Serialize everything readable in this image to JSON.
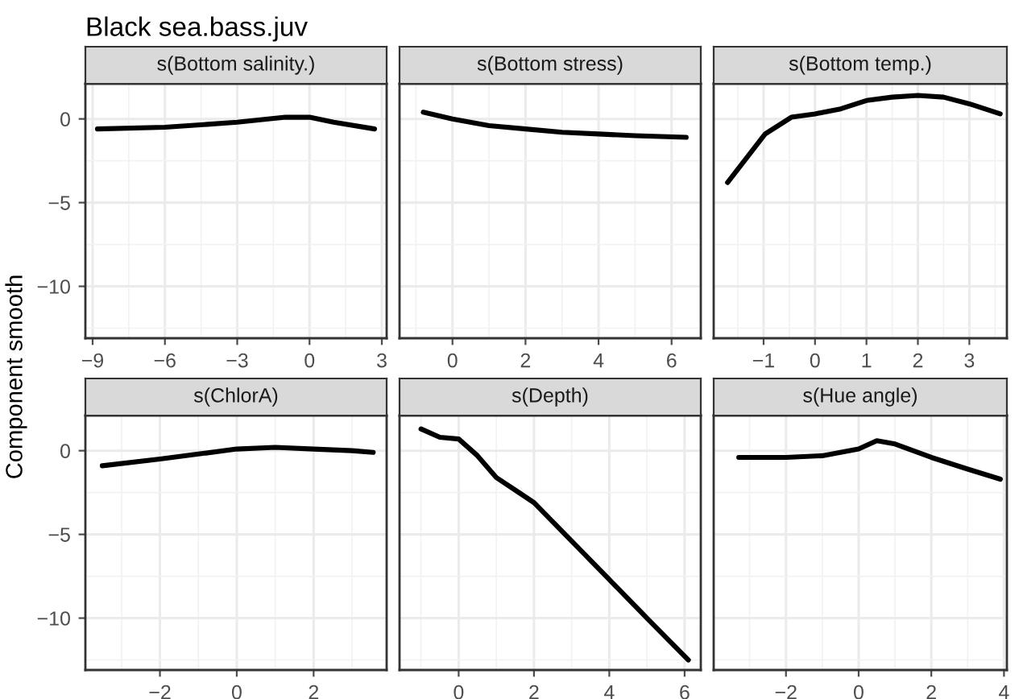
{
  "chart_data": [
    {
      "type": "line",
      "title": "s(Bottom salinity.)",
      "annotations": [
        "Black sea.bass.juv"
      ],
      "ylabel": "Component smooth",
      "color": "#000000",
      "grid": true,
      "x": [
        -8.8,
        -6,
        -3,
        -1,
        0,
        1,
        2.7
      ],
      "values": [
        -0.6,
        -0.5,
        -0.2,
        0.1,
        0.1,
        -0.2,
        -0.6
      ],
      "xlim": [
        -9.3,
        3.2
      ],
      "xticks": [
        {
          "value": -9,
          "label": "−9"
        },
        {
          "value": -6,
          "label": "−6"
        },
        {
          "value": -3,
          "label": "−3"
        },
        0,
        3
      ],
      "ylim": [
        -13.1,
        2.1
      ],
      "yticks": [
        {
          "value": -10,
          "label": "−10"
        },
        {
          "value": -5,
          "label": "−5"
        },
        0
      ]
    },
    {
      "type": "line",
      "title": "s(Bottom stress)",
      "color": "#000000",
      "grid": true,
      "tick_labels": "x",
      "x": [
        -0.8,
        0,
        1,
        2,
        3,
        4,
        5,
        6.4
      ],
      "values": [
        0.4,
        0.0,
        -0.4,
        -0.6,
        -0.8,
        -0.9,
        -1.0,
        -1.1
      ],
      "xlim": [
        -1.45,
        6.8
      ],
      "xticks": [
        0,
        2,
        4,
        6
      ],
      "ylim": [
        -13.1,
        2.1
      ],
      "yticks": [
        {
          "value": -10,
          "label": null
        },
        {
          "value": -5,
          "label": null
        },
        {
          "value": 0,
          "label": null
        }
      ]
    },
    {
      "type": "line",
      "title": "s(Bottom temp.)",
      "color": "#000000",
      "grid": true,
      "tick_labels": "x",
      "x": [
        -1.7,
        -0.97,
        -0.46,
        0,
        0.5,
        1,
        1.5,
        2,
        2.5,
        3,
        3.6
      ],
      "values": [
        -3.8,
        -0.9,
        0.1,
        0.3,
        0.6,
        1.1,
        1.3,
        1.4,
        1.3,
        0.9,
        0.3
      ],
      "xlim": [
        -1.97,
        3.73
      ],
      "xticks": [
        {
          "value": -1,
          "label": "−1"
        },
        0,
        1,
        2,
        3
      ],
      "ylim": [
        -13.1,
        2.1
      ],
      "yticks": [
        {
          "value": -10,
          "label": null
        },
        {
          "value": -5,
          "label": null
        },
        {
          "value": 0,
          "label": null
        }
      ]
    },
    {
      "type": "line",
      "title": "s(ChlorA)",
      "color": "#000000",
      "grid": true,
      "x": [
        -3.5,
        -2,
        -1,
        0,
        1,
        2,
        3,
        3.55
      ],
      "values": [
        -0.9,
        -0.5,
        -0.2,
        0.1,
        0.2,
        0.1,
        0.0,
        -0.1
      ],
      "xlim": [
        -3.94,
        3.9
      ],
      "xticks": [
        {
          "value": -2,
          "label": "−2"
        },
        0,
        2
      ],
      "ylim": [
        -13.1,
        2.1
      ],
      "yticks": [
        {
          "value": -10,
          "label": "−10"
        },
        {
          "value": -5,
          "label": "−5"
        },
        0
      ]
    },
    {
      "type": "line",
      "title": "s(Depth)",
      "color": "#000000",
      "grid": true,
      "tick_labels": "x",
      "x": [
        -1,
        -0.5,
        0,
        0.5,
        1,
        1.6,
        2,
        3,
        4,
        5,
        6.1
      ],
      "values": [
        1.3,
        0.8,
        0.7,
        -0.3,
        -1.6,
        -2.5,
        -3.1,
        -5.4,
        -7.7,
        -10.0,
        -12.5
      ],
      "xlim": [
        -1.57,
        6.43
      ],
      "xticks": [
        0,
        2,
        4,
        6
      ],
      "ylim": [
        -13.1,
        2.1
      ],
      "yticks": [
        {
          "value": -10,
          "label": null
        },
        {
          "value": -5,
          "label": null
        },
        {
          "value": 0,
          "label": null
        }
      ]
    },
    {
      "type": "line",
      "title": "s(Hue angle)",
      "color": "#000000",
      "grid": true,
      "tick_labels": "x",
      "x": [
        -3.3,
        -2,
        -1,
        0,
        0.5,
        1,
        2,
        3,
        3.9
      ],
      "values": [
        -0.4,
        -0.4,
        -0.3,
        0.1,
        0.6,
        0.4,
        -0.4,
        -1.1,
        -1.7
      ],
      "xlim": [
        -3.99,
        4.08
      ],
      "xticks": [
        {
          "value": -2,
          "label": "−2"
        },
        0,
        2,
        4
      ],
      "ylim": [
        -13.1,
        2.1
      ],
      "yticks": [
        {
          "value": -10,
          "label": null
        },
        {
          "value": -5,
          "label": null
        },
        {
          "value": 0,
          "label": null
        }
      ]
    }
  ]
}
